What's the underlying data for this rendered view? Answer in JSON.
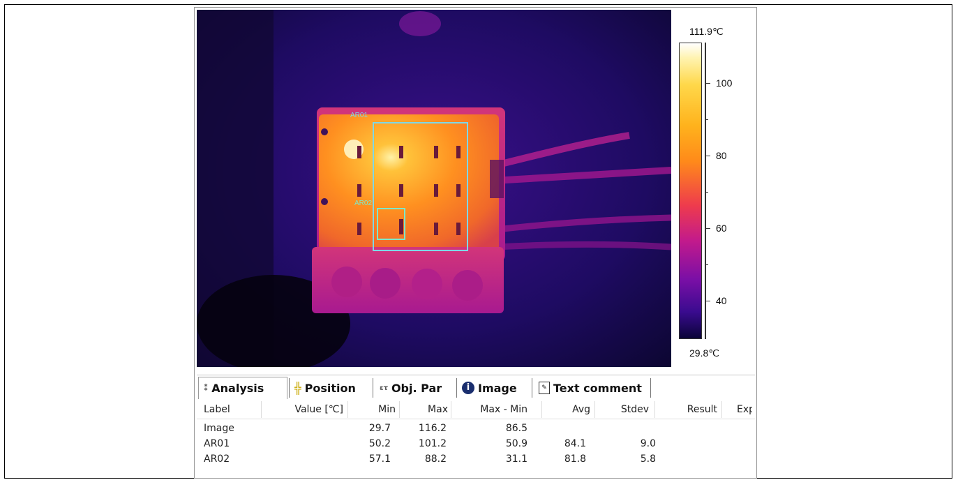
{
  "thermal_image": {
    "regions": [
      {
        "label": "AR01",
        "color": "#7fd8e8"
      },
      {
        "label": "AR02",
        "color": "#7fe8c8"
      }
    ]
  },
  "scale": {
    "max_label": "111.9℃",
    "min_label": "29.8℃",
    "ticks": [
      "100",
      "80",
      "60",
      "40"
    ]
  },
  "tabs": [
    {
      "label": "Analysis",
      "icon": "analysis-icon"
    },
    {
      "label": "Position",
      "icon": "position-icon"
    },
    {
      "label": "Obj. Par",
      "icon": "object-params-icon"
    },
    {
      "label": "Image",
      "icon": "info-icon"
    },
    {
      "label": "Text comment",
      "icon": "text-comment-icon"
    }
  ],
  "table": {
    "columns": [
      "Label",
      "Value [℃]",
      "Min",
      "Max",
      "Max - Min",
      "Avg",
      "Stdev",
      "Result",
      "Exp"
    ],
    "rows": [
      {
        "label": "Image",
        "value": "",
        "min": "29.7",
        "max": "116.2",
        "maxmin": "86.5",
        "avg": "",
        "stdev": "",
        "result": ""
      },
      {
        "label": "AR01",
        "value": "",
        "min": "50.2",
        "max": "101.2",
        "maxmin": "50.9",
        "avg": "84.1",
        "stdev": "9.0",
        "result": ""
      },
      {
        "label": "AR02",
        "value": "",
        "min": "57.1",
        "max": "88.2",
        "maxmin": "31.1",
        "avg": "81.8",
        "stdev": "5.8",
        "result": ""
      }
    ]
  }
}
